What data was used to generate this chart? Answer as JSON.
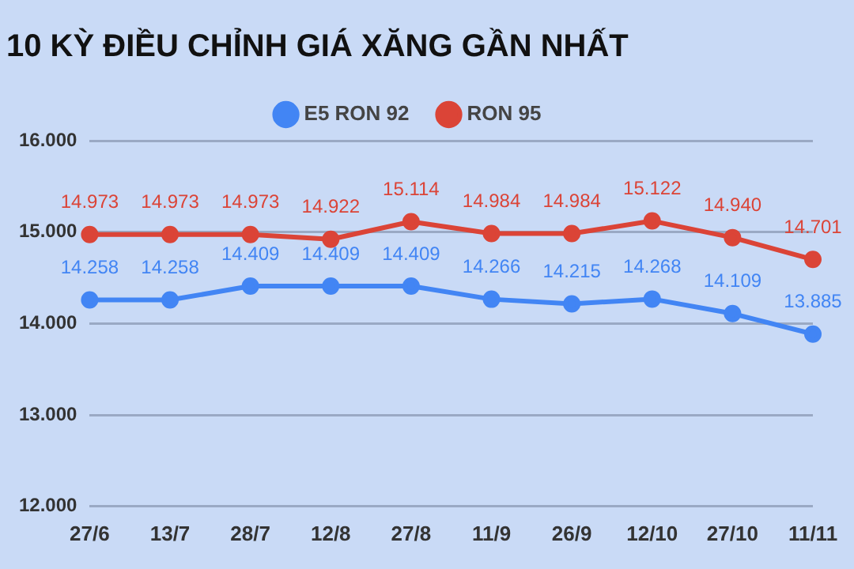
{
  "chart_data": {
    "type": "line",
    "title": "10 KỲ ĐIỀU CHỈNH GIÁ XĂNG GẦN NHẤT",
    "categories": [
      "27/6",
      "13/7",
      "28/7",
      "12/8",
      "27/8",
      "11/9",
      "26/9",
      "12/10",
      "27/10",
      "11/11"
    ],
    "series": [
      {
        "name": "E5 RON 92",
        "color": "#4285f4",
        "values": [
          14258,
          14258,
          14409,
          14409,
          14409,
          14266,
          14215,
          14268,
          14109,
          13885
        ],
        "value_labels": [
          "14.258",
          "14.258",
          "14.409",
          "14.409",
          "14.409",
          "14.266",
          "14.215",
          "14.268",
          "14.109",
          "13.885"
        ]
      },
      {
        "name": "RON 95",
        "color": "#db4437",
        "values": [
          14973,
          14973,
          14973,
          14922,
          15114,
          14984,
          14984,
          15122,
          14940,
          14701
        ],
        "value_labels": [
          "14.973",
          "14.973",
          "14.973",
          "14.922",
          "15.114",
          "14.984",
          "14.984",
          "15.122",
          "14.940",
          "14.701"
        ]
      }
    ],
    "ylim": [
      12000,
      16000
    ],
    "yticks": [
      {
        "value": 12000,
        "label": "12.000"
      },
      {
        "value": 13000,
        "label": "13.000"
      },
      {
        "value": 14000,
        "label": "14.000"
      },
      {
        "value": 15000,
        "label": "15.000"
      },
      {
        "value": 16000,
        "label": "16.000"
      }
    ],
    "grid": "y",
    "legend": "top",
    "marker": "circle",
    "line_style": "solid"
  }
}
